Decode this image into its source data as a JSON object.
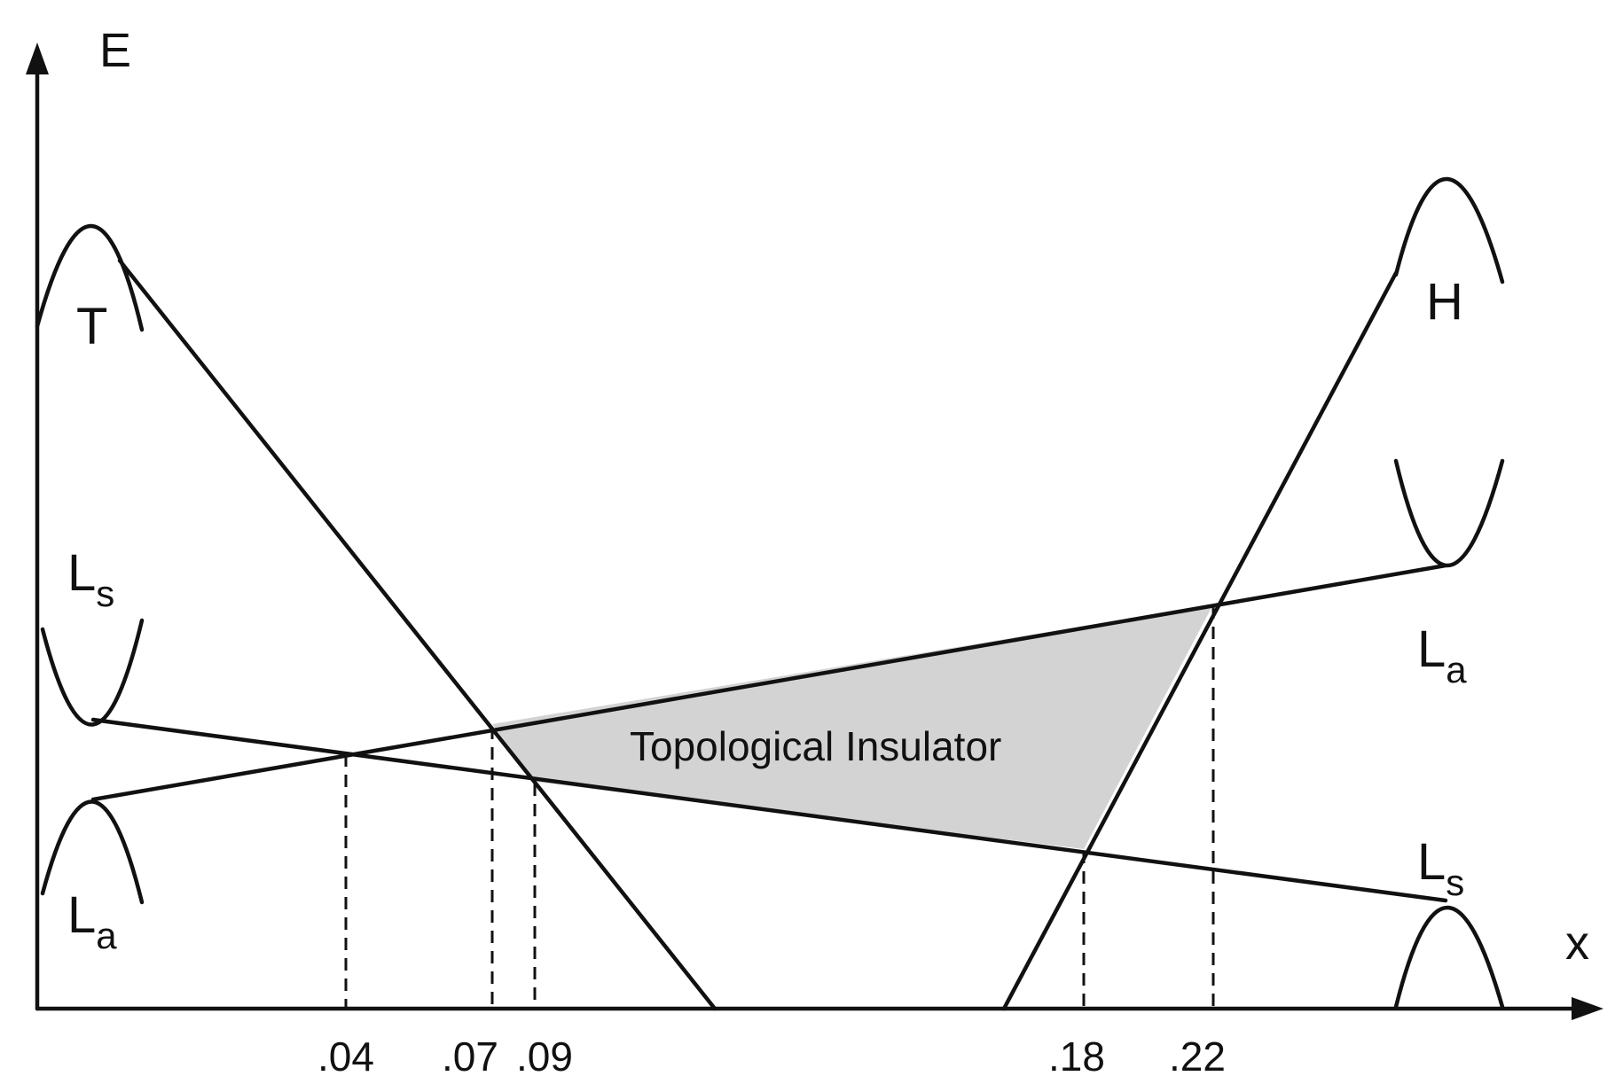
{
  "axes": {
    "y_label": "E",
    "x_label": "x"
  },
  "band_labels": {
    "t_left": "T",
    "h_right": "H",
    "ls_left": {
      "main": "L",
      "sub": "s"
    },
    "la_left": {
      "main": "L",
      "sub": "a"
    },
    "la_right": {
      "main": "L",
      "sub": "a"
    },
    "ls_right": {
      "main": "L",
      "sub": "s"
    }
  },
  "region_label": "Topological Insulator",
  "ticks": [
    ".04",
    ".07",
    ".09",
    ".18",
    ".22"
  ],
  "colors": {
    "line": "#111111",
    "region_fill": "#d3d3d3"
  }
}
